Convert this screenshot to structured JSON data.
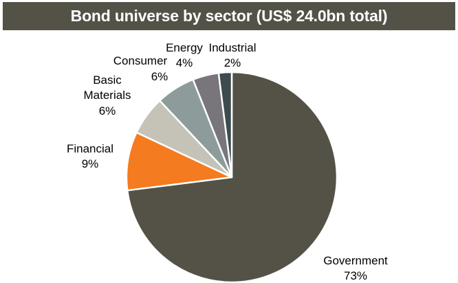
{
  "header": {
    "title": "Bond universe by sector (US$ 24.0bn total)"
  },
  "chart_data": {
    "type": "pie",
    "title": "Bond universe by sector (US$ 24.0bn total)",
    "start_angle_deg": 0,
    "direction": "clockwise",
    "slices": [
      {
        "label": "Government",
        "value": 73,
        "value_label": "73%",
        "color": "#545147"
      },
      {
        "label": "Financial",
        "value": 9,
        "value_label": "9%",
        "color": "#F47B20"
      },
      {
        "label": "Basic Materials",
        "label_lines": [
          "Basic",
          "Materials"
        ],
        "value": 6,
        "value_label": "6%",
        "color": "#C5C3B8"
      },
      {
        "label": "Consumer",
        "value": 6,
        "value_label": "6%",
        "color": "#8D9C9B"
      },
      {
        "label": "Energy",
        "value": 4,
        "value_label": "4%",
        "color": "#78767A"
      },
      {
        "label": "Industrial",
        "value": 2,
        "value_label": "2%",
        "color": "#3E4B4E"
      }
    ]
  }
}
